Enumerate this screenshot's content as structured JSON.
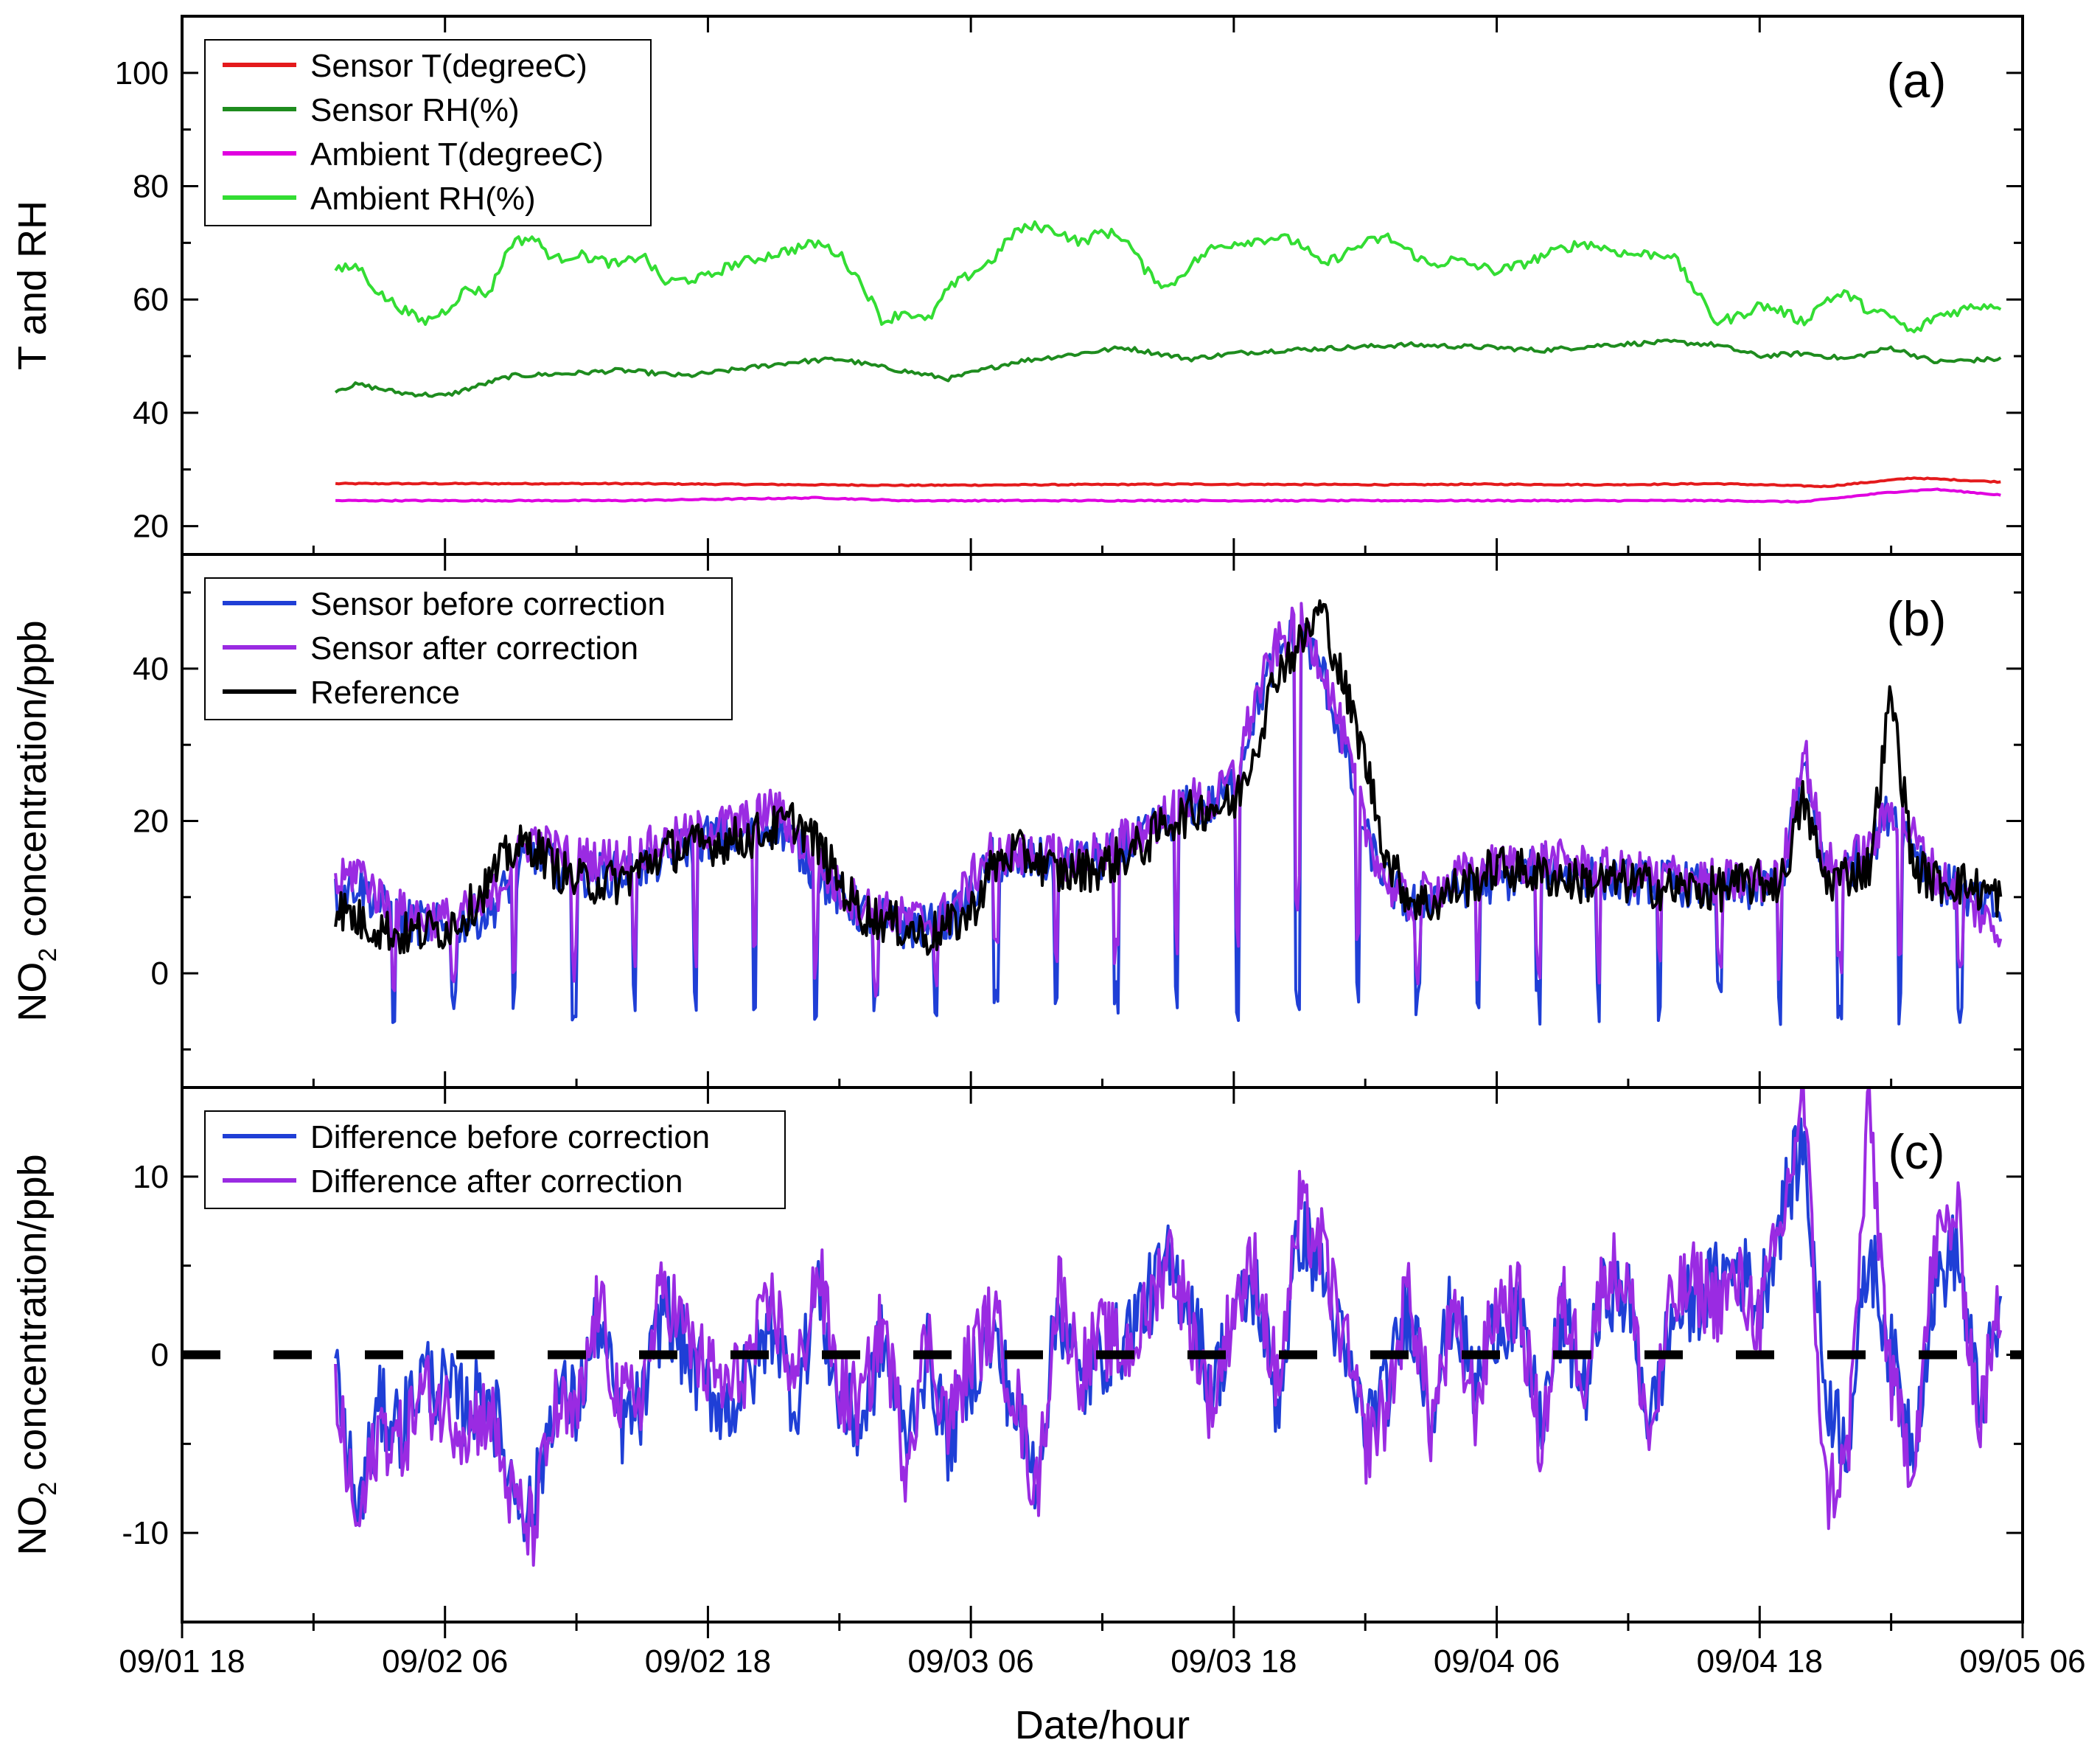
{
  "chart_data": [
    {
      "panel": "(a)",
      "type": "line",
      "ylabel": "T and RH",
      "ylim": [
        15,
        110
      ],
      "yticks": [
        20,
        40,
        60,
        80,
        100
      ],
      "series": [
        {
          "name": "Sensor T(degreeC)",
          "color": "#e41a1c",
          "x": [
            7,
            20,
            33,
            46,
            56,
            59,
            65,
            70,
            75,
            79,
            83
          ],
          "y": [
            27.5,
            27.5,
            27.2,
            27.4,
            27.3,
            27.4,
            27.3,
            27.5,
            27.0,
            28.5,
            27.8
          ]
        },
        {
          "name": "Sensor RH(%)",
          "color": "#1e8c1e",
          "x": [
            7,
            8,
            10,
            12,
            15,
            18,
            20,
            23,
            26,
            28,
            30,
            32,
            35,
            38,
            40,
            43,
            46,
            48,
            50,
            53,
            56,
            60,
            62,
            65,
            68,
            70,
            72,
            74,
            76,
            78,
            80,
            83
          ],
          "y": [
            44.0,
            45.0,
            43.5,
            43.0,
            46.5,
            47.0,
            47.5,
            46.5,
            48.0,
            49.0,
            49.5,
            48.0,
            46.0,
            49.0,
            50.0,
            51.5,
            49.5,
            50.5,
            51.0,
            51.5,
            52.0,
            51.5,
            51.0,
            52.0,
            52.5,
            52.0,
            50.0,
            50.5,
            49.5,
            51.5,
            49.0,
            49.5
          ]
        },
        {
          "name": "Ambient T(degreeC)",
          "color": "#e000e0",
          "x": [
            7,
            20,
            29,
            33,
            46,
            56,
            70,
            74,
            78,
            80,
            83
          ],
          "y": [
            24.5,
            24.5,
            25.0,
            24.5,
            24.5,
            24.5,
            24.5,
            24.3,
            26.0,
            26.5,
            25.5
          ]
        },
        {
          "name": "Ambient RH(%)",
          "color": "#33dd33",
          "x": [
            7,
            8,
            9,
            11,
            12,
            13,
            14,
            15,
            16,
            17,
            18,
            20,
            21,
            22,
            24,
            25,
            27,
            29,
            30,
            31,
            32,
            33,
            34,
            35,
            37,
            38,
            39,
            40,
            41,
            42,
            43,
            44,
            45,
            46,
            47,
            48,
            50,
            51,
            52,
            54,
            55,
            57,
            58,
            60,
            61,
            63,
            64,
            65,
            66,
            67,
            68,
            69,
            70,
            71,
            72,
            73,
            74,
            75,
            76,
            77,
            78,
            79,
            80,
            81,
            82,
            83
          ],
          "y": [
            65,
            66,
            61,
            56,
            58,
            62,
            61,
            70,
            71,
            67,
            68,
            66,
            68,
            63,
            64,
            66,
            68,
            70,
            68,
            63,
            56,
            58,
            56,
            62,
            67,
            72,
            73,
            72,
            70,
            72,
            71,
            65,
            62,
            66,
            69,
            70,
            71,
            70,
            66,
            70,
            71,
            66,
            67,
            65,
            66,
            69,
            70,
            69,
            68,
            68,
            68,
            62,
            56,
            57,
            59,
            58,
            56,
            60,
            61,
            58,
            57,
            54,
            57,
            58,
            59,
            59
          ]
        }
      ]
    },
    {
      "panel": "(b)",
      "type": "line",
      "ylabel": "NO2 concentration/ppb",
      "ylabel_main": "NO",
      "ylabel_sub": "2",
      "ylabel_rest": " concentration/ppb",
      "ylim": [
        -15,
        55
      ],
      "yticks": [
        0,
        20,
        40
      ],
      "series": [
        {
          "name": "Sensor before correction",
          "color": "#1f3fd6",
          "x": [
            7,
            8,
            9,
            10,
            12,
            14,
            15,
            16,
            17,
            18,
            20,
            22,
            24,
            26,
            27,
            28,
            29,
            30,
            31,
            32,
            33,
            34,
            35,
            36,
            37,
            38,
            39,
            40,
            42,
            44,
            45,
            46,
            47,
            48,
            49,
            50,
            51,
            52,
            53,
            54,
            55,
            56,
            57,
            58,
            59,
            60,
            62,
            64,
            66,
            68,
            70,
            72,
            73,
            74,
            75,
            76,
            77,
            78,
            79,
            80,
            81,
            82,
            83
          ],
          "y": [
            10,
            12,
            9,
            7,
            6,
            8,
            12,
            16,
            14,
            13,
            13,
            15,
            18,
            18,
            20,
            17,
            13,
            10,
            8,
            7,
            6,
            6,
            7,
            10,
            15,
            14,
            15,
            14,
            15,
            18,
            20,
            22,
            22,
            25,
            35,
            42,
            45,
            40,
            30,
            18,
            12,
            9,
            10,
            11,
            12,
            12,
            14,
            13,
            12,
            12,
            11,
            11,
            12,
            27,
            13,
            14,
            16,
            22,
            17,
            12,
            11,
            9,
            8
          ]
        },
        {
          "name": "Sensor after correction",
          "color": "#9a2be2",
          "x": [
            7,
            8,
            9,
            10,
            12,
            14,
            15,
            16,
            17,
            18,
            20,
            22,
            24,
            26,
            27,
            28,
            29,
            30,
            31,
            32,
            33,
            34,
            35,
            36,
            37,
            38,
            39,
            40,
            42,
            44,
            45,
            46,
            47,
            48,
            49,
            50,
            51,
            52,
            53,
            54,
            55,
            56,
            57,
            58,
            59,
            60,
            62,
            64,
            66,
            68,
            70,
            72,
            73,
            74,
            75,
            76,
            77,
            78,
            79,
            80,
            81,
            82,
            83
          ],
          "y": [
            11,
            14,
            10,
            8,
            7,
            9,
            14,
            18,
            16,
            15,
            15,
            17,
            19,
            20,
            22,
            18,
            14,
            11,
            9,
            8,
            7,
            7,
            8,
            12,
            17,
            15,
            16,
            15,
            16,
            19,
            21,
            23,
            22,
            26,
            36,
            43,
            46,
            41,
            31,
            19,
            12,
            9,
            11,
            12,
            14,
            14,
            15,
            14,
            13,
            13,
            12,
            12,
            13,
            30,
            14,
            15,
            16,
            22,
            18,
            13,
            11,
            8,
            5
          ]
        },
        {
          "name": "Reference",
          "color": "#000000",
          "x": [
            7,
            8,
            9,
            10,
            12,
            13,
            14,
            15,
            16,
            17,
            18,
            20,
            22,
            24,
            26,
            27,
            28,
            29,
            30,
            31,
            32,
            33,
            34,
            35,
            36,
            37,
            38,
            39,
            40,
            42,
            44,
            45,
            46,
            47,
            48,
            49,
            50,
            51,
            52,
            53,
            54,
            55,
            56,
            57,
            58,
            59,
            60,
            62,
            64,
            66,
            68,
            70,
            72,
            73,
            74,
            75,
            76,
            77,
            78,
            79,
            80,
            81,
            82,
            83
          ],
          "y": [
            9,
            7,
            6,
            5,
            6,
            8,
            12,
            16,
            17,
            14,
            12,
            12,
            16,
            17,
            18,
            19,
            20,
            17,
            12,
            8,
            7,
            6,
            5,
            6,
            8,
            14,
            16,
            15,
            13,
            14,
            17,
            20,
            21,
            22,
            22,
            30,
            40,
            43,
            48,
            38,
            28,
            15,
            10,
            9,
            11,
            12,
            14,
            13,
            12,
            12,
            11,
            11,
            12,
            12,
            23,
            12,
            13,
            14,
            37,
            14,
            12,
            12,
            11,
            10
          ]
        }
      ]
    },
    {
      "panel": "(c)",
      "type": "line",
      "ylabel": "NO2 concentration/ppb",
      "ylabel_main": "NO",
      "ylabel_sub": "2",
      "ylabel_rest": " concentration/ppb",
      "ylim": [
        -15,
        15
      ],
      "yticks": [
        -10,
        0,
        10
      ],
      "series": [
        {
          "name": "Difference before correction",
          "color": "#1f3fd6",
          "x": [
            7,
            8,
            9,
            10,
            11,
            12,
            13,
            14,
            15,
            16,
            17,
            18,
            19,
            20,
            21,
            22,
            23,
            24,
            25,
            26,
            27,
            28,
            29,
            30,
            31,
            32,
            33,
            34,
            35,
            36,
            37,
            38,
            39,
            40,
            41,
            42,
            43,
            44,
            45,
            46,
            47,
            48,
            49,
            50,
            51,
            52,
            53,
            54,
            55,
            56,
            57,
            58,
            59,
            60,
            61,
            62,
            63,
            64,
            65,
            66,
            67,
            68,
            69,
            70,
            71,
            72,
            73,
            74,
            75,
            76,
            77,
            78,
            79,
            80,
            81,
            82,
            83
          ],
          "y": [
            -1,
            -9,
            -3,
            -4,
            -1,
            -2,
            -3,
            -2,
            -7,
            -9,
            -2,
            -3,
            2,
            -4,
            -3,
            3,
            0,
            -2,
            -3,
            -1,
            2,
            -3,
            4,
            -3,
            -4,
            1,
            -5,
            0,
            -5,
            -1,
            1,
            -3,
            -7,
            3,
            -2,
            0,
            1,
            3,
            5,
            3,
            -2,
            2,
            4,
            -3,
            7,
            5,
            0,
            -4,
            -2,
            3,
            -3,
            3,
            -2,
            2,
            2,
            -4,
            2,
            -2,
            4,
            3,
            -4,
            2,
            3,
            4,
            5,
            3,
            8,
            12,
            -2,
            -5,
            6,
            0,
            -5,
            4,
            6,
            -3,
            2
          ]
        },
        {
          "name": "Difference after correction",
          "color": "#9a2be2",
          "x": [
            7,
            8,
            9,
            10,
            11,
            12,
            13,
            14,
            15,
            16,
            17,
            18,
            19,
            20,
            21,
            22,
            23,
            24,
            25,
            26,
            27,
            28,
            29,
            30,
            31,
            32,
            33,
            34,
            35,
            36,
            37,
            38,
            39,
            40,
            41,
            42,
            43,
            44,
            45,
            46,
            47,
            48,
            49,
            50,
            51,
            52,
            53,
            54,
            55,
            56,
            57,
            58,
            59,
            60,
            61,
            62,
            63,
            64,
            65,
            66,
            67,
            68,
            69,
            70,
            71,
            72,
            73,
            74,
            75,
            76,
            77,
            78,
            79,
            80,
            81,
            82,
            83
          ],
          "y": [
            -2,
            -10,
            -4,
            -5,
            -2,
            -3,
            -4,
            -3,
            -8,
            -10,
            -3,
            -4,
            3,
            -3,
            -2,
            4,
            1,
            -1,
            -2,
            0,
            3,
            -2,
            5,
            -2,
            -3,
            2,
            -6,
            1,
            -4,
            0,
            2,
            -2,
            -8,
            4,
            -1,
            1,
            0,
            2,
            6,
            2,
            -3,
            3,
            5,
            -2,
            8,
            6,
            1,
            -5,
            -3,
            4,
            -4,
            2,
            -3,
            3,
            3,
            -5,
            3,
            -1,
            5,
            4,
            -5,
            3,
            4,
            3,
            4,
            2,
            7,
            15,
            -8,
            -6,
            14,
            -2,
            -6,
            6,
            8,
            -4,
            3
          ]
        },
        {
          "name": "zero line",
          "color": "#000000",
          "dashed": true,
          "x": [
            0,
            84
          ],
          "y": [
            0,
            0
          ]
        }
      ]
    }
  ],
  "x_axis": {
    "label": "Date/hour",
    "range_hours": [
      0,
      84
    ],
    "ticks": [
      {
        "hour": 0,
        "label": "09/01 18"
      },
      {
        "hour": 12,
        "label": "09/02 06"
      },
      {
        "hour": 24,
        "label": "09/02 18"
      },
      {
        "hour": 36,
        "label": "09/03 06"
      },
      {
        "hour": 48,
        "label": "09/03 18"
      },
      {
        "hour": 60,
        "label": "09/04 06"
      },
      {
        "hour": 72,
        "label": "09/04 18"
      },
      {
        "hour": 84,
        "label": "09/05 06"
      }
    ]
  }
}
